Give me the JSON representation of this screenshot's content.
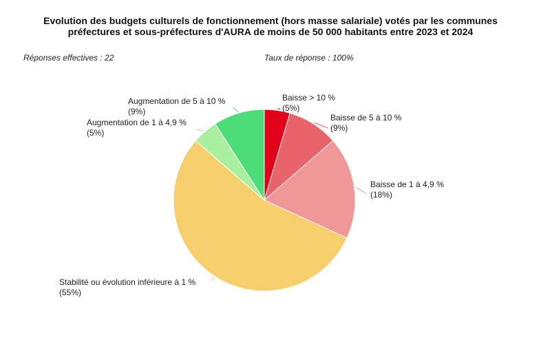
{
  "title_lines": [
    "Evolution des budgets culturels de fonctionnement (hors masse salariale) votés par les communes",
    "préfectures et sous-préfectures d'AURA de moins de 50 000 habitants entre 2023 et 2024"
  ],
  "responses_label": "Réponses effectives : 22",
  "rate_label": "Taux de réponse : 100%",
  "chart_data": {
    "type": "pie",
    "title": "Evolution des budgets culturels de fonctionnement (hors masse salariale) votés par les communes préfectures et sous-préfectures d'AURA de moins de 50 000 habitants entre 2023 et 2024",
    "slices": [
      {
        "label": "Baisse > 10 %",
        "value": 1,
        "percent_label": "(5%)",
        "color": "#e3001b"
      },
      {
        "label": "Baisse de 5 à 10 %",
        "value": 2,
        "percent_label": "(9%)",
        "color": "#e8646a"
      },
      {
        "label": "Baisse de 1 à 4,9 %",
        "value": 4,
        "percent_label": "(18%)",
        "color": "#ef9696"
      },
      {
        "label": "Stabilité ou évolution inférieure à 1 %",
        "value": 12,
        "percent_label": "(55%)",
        "color": "#f7ce6c"
      },
      {
        "label": "Augmentation de 1 à 4,9 %",
        "value": 1,
        "percent_label": "(5%)",
        "color": "#a8f0a0"
      },
      {
        "label": "Augmentation de 5 à 10 %",
        "value": 2,
        "percent_label": "(9%)",
        "color": "#4cdc78"
      }
    ]
  }
}
